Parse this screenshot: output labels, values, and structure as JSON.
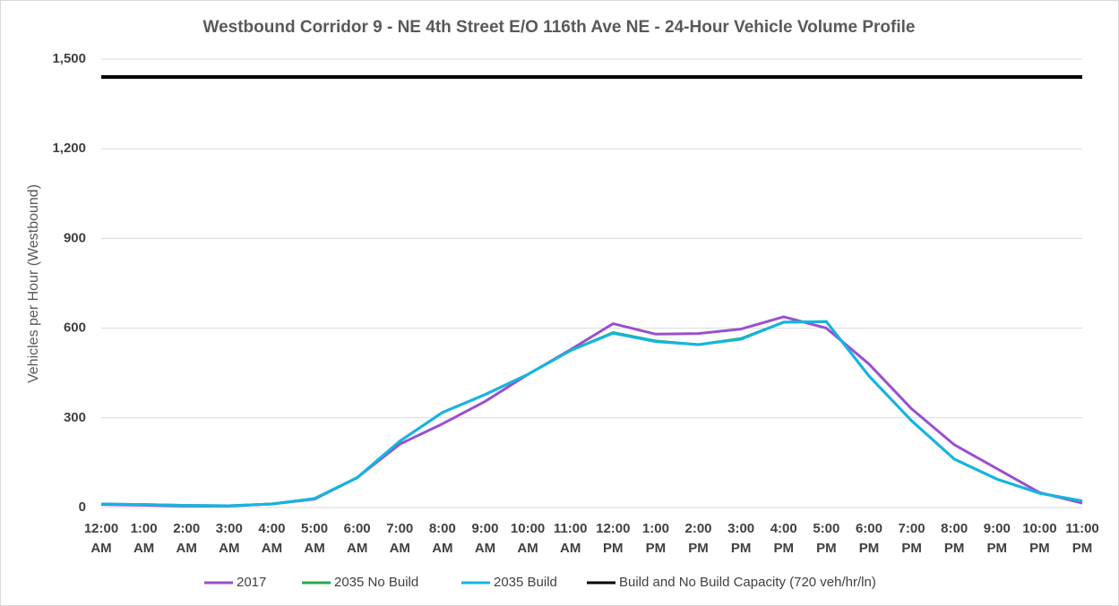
{
  "chart_data": {
    "type": "line",
    "title": "Westbound Corridor 9 - NE 4th Street E/O 116th Ave NE - 24-Hour Vehicle Volume Profile",
    "y_label": "Vehicles per Hour (Westbound)",
    "categories": [
      "12:00 AM",
      "1:00 AM",
      "2:00 AM",
      "3:00 AM",
      "4:00 AM",
      "5:00 AM",
      "6:00 AM",
      "7:00 AM",
      "8:00 AM",
      "9:00 AM",
      "10:00 AM",
      "11:00 AM",
      "12:00 PM",
      "1:00 PM",
      "2:00 PM",
      "3:00 PM",
      "4:00 PM",
      "5:00 PM",
      "6:00 PM",
      "7:00 PM",
      "8:00 PM",
      "9:00 PM",
      "10:00 PM",
      "11:00 PM"
    ],
    "series": [
      {
        "name": "2017",
        "color": "#9b4fcf",
        "values": [
          10,
          8,
          5,
          5,
          12,
          28,
          100,
          212,
          280,
          355,
          445,
          528,
          615,
          580,
          582,
          597,
          638,
          600,
          480,
          330,
          210,
          130,
          50,
          15
        ]
      },
      {
        "name": "2035 No Build",
        "color": "#1fad4b",
        "values": [
          12,
          10,
          7,
          6,
          12,
          30,
          100,
          222,
          318,
          378,
          445,
          525,
          585,
          557,
          545,
          565,
          620,
          622,
          440,
          290,
          162,
          95,
          48,
          22
        ]
      },
      {
        "name": "2035 Build",
        "color": "#16b3e6",
        "values": [
          12,
          10,
          7,
          6,
          12,
          30,
          100,
          222,
          318,
          378,
          445,
          525,
          583,
          555,
          545,
          563,
          620,
          622,
          440,
          290,
          162,
          95,
          48,
          22
        ]
      },
      {
        "name": "Build and No Build Capacity (720 veh/hr/ln)",
        "color": "#000000",
        "values": [
          1440,
          1440,
          1440,
          1440,
          1440,
          1440,
          1440,
          1440,
          1440,
          1440,
          1440,
          1440,
          1440,
          1440,
          1440,
          1440,
          1440,
          1440,
          1440,
          1440,
          1440,
          1440,
          1440,
          1440
        ]
      }
    ],
    "ylim": [
      0,
      1500
    ],
    "yticks": [
      0,
      300,
      600,
      900,
      {
        "value": 1200,
        "label": "1,200"
      },
      {
        "value": 1500,
        "label": "1,500"
      }
    ],
    "grid": true,
    "legend": "bottom"
  }
}
